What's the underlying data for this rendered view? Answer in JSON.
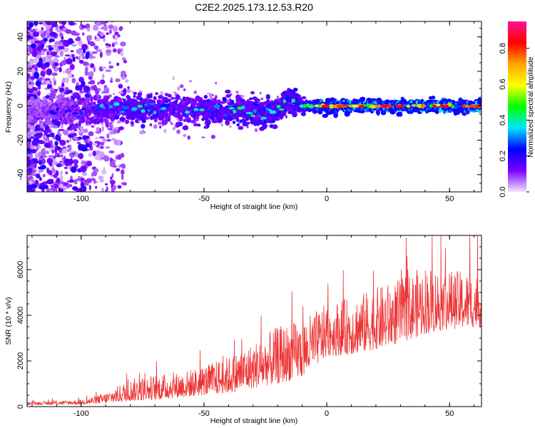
{
  "title": "C2E2.2025.173.12.53.R20",
  "chart_data": [
    {
      "type": "heatmap",
      "xlabel": "Height of straight line (km)",
      "ylabel": "Frequency (Hz)",
      "xlim": [
        -122,
        63
      ],
      "ylim": [
        -50,
        49
      ],
      "x_ticks": [
        -100,
        -50,
        0,
        50
      ],
      "x_tick_labels": [
        "-100",
        "-50",
        "0",
        "50"
      ],
      "y_ticks": [
        -40,
        -20,
        0,
        20,
        40
      ],
      "y_tick_labels": [
        "-40",
        "-20",
        "0",
        "20",
        "40"
      ],
      "grid": false,
      "colorbar": {
        "label": "Normalized spectral amplitude",
        "range": [
          0,
          0.95
        ],
        "ticks": [
          0.0,
          0.2,
          0.4,
          0.6,
          0.8
        ],
        "tick_labels": [
          "0.0",
          "0.2",
          "0.4",
          "0.6",
          "0.8"
        ],
        "colors": [
          "#f1e6fb",
          "#7a00ff",
          "#0000ff",
          "#00e5ff",
          "#00ff00",
          "#ffff00",
          "#ffa500",
          "#ff0000",
          "#ff1493"
        ]
      },
      "ridge": {
        "x": [
          -122,
          -100,
          -80,
          -60,
          -40,
          -20,
          -15,
          -10,
          0,
          20,
          40,
          63
        ],
        "center_frequency": [
          -3,
          -3,
          -1,
          -2,
          -3,
          -4,
          5,
          0,
          0,
          0,
          0,
          0
        ],
        "peak_amplitude": [
          0.2,
          0.3,
          0.45,
          0.4,
          0.45,
          0.5,
          0.5,
          0.55,
          0.75,
          0.8,
          0.8,
          0.75
        ]
      }
    },
    {
      "type": "line",
      "xlabel": "Height of straight line (km)",
      "ylabel": "SNR (10 * v/v)",
      "xlim": [
        -122,
        63
      ],
      "ylim": [
        0,
        7500
      ],
      "x_ticks": [
        -100,
        -50,
        0,
        50
      ],
      "x_tick_labels": [
        "-100",
        "-50",
        "0",
        "50"
      ],
      "y_ticks": [
        0,
        2000,
        4000,
        6000
      ],
      "y_tick_labels": [
        "0",
        "2000",
        "4000",
        "6000"
      ],
      "grid": false,
      "series": [
        {
          "color": "#ee3333",
          "x": [
            -122,
            -110,
            -100,
            -90,
            -80,
            -70,
            -60,
            -50,
            -40,
            -30,
            -20,
            -10,
            0,
            10,
            20,
            30,
            40,
            50,
            63
          ],
          "envelope_low": [
            80,
            90,
            100,
            150,
            250,
            300,
            400,
            500,
            600,
            800,
            1000,
            1300,
            2200,
            2300,
            2500,
            2800,
            3200,
            3400,
            3500
          ],
          "envelope_high": [
            200,
            250,
            300,
            600,
            1200,
            1400,
            1500,
            1800,
            2200,
            2800,
            3500,
            3800,
            4500,
            4800,
            5200,
            5600,
            6200,
            6000,
            5800
          ]
        }
      ]
    }
  ]
}
